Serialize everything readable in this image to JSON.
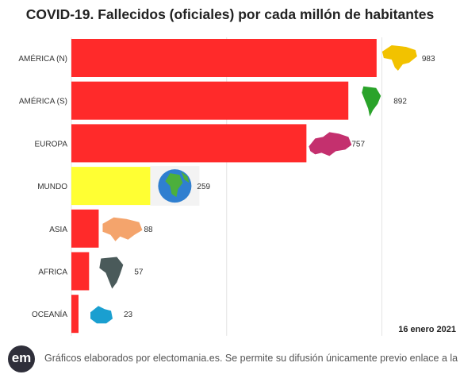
{
  "chart_data": {
    "type": "bar",
    "orientation": "horizontal",
    "title": "COVID-19. Fallecidos (oficiales) por cada millón de habitantes",
    "categories": [
      "AMÉRICA (N)",
      "AMÉRICA (S)",
      "EUROPA",
      "MUNDO",
      "ASIA",
      "AFRICA",
      "OCEANÍA"
    ],
    "values": [
      983,
      892,
      757,
      259,
      88,
      57,
      23
    ],
    "value_labels": [
      "983",
      "892",
      "757",
      "259",
      "88",
      "57",
      "23"
    ],
    "bar_colors": [
      "#ff2a2a",
      "#ff2a2a",
      "#ff2a2a",
      "#ffff33",
      "#ff2a2a",
      "#ff2a2a",
      "#ff2a2a"
    ],
    "xlim": [
      0,
      1000
    ],
    "grid": true,
    "date_label": "16 enero 2021",
    "icons": [
      "north-america-map-icon",
      "south-america-map-icon",
      "europe-map-icon",
      "globe-icon",
      "asia-map-icon",
      "africa-map-icon",
      "oceania-map-icon"
    ],
    "icon_colors": [
      "#f2c200",
      "#2aa32a",
      "#c4306e",
      "#2f7fd0",
      "#f4a46c",
      "#4a5a5a",
      "#1a9fd0"
    ]
  },
  "footer": {
    "logo_text": "em",
    "credit": "Gráficos elaborados por electomania.es. Se permite su difusión únicamente previo enlace a la web"
  }
}
